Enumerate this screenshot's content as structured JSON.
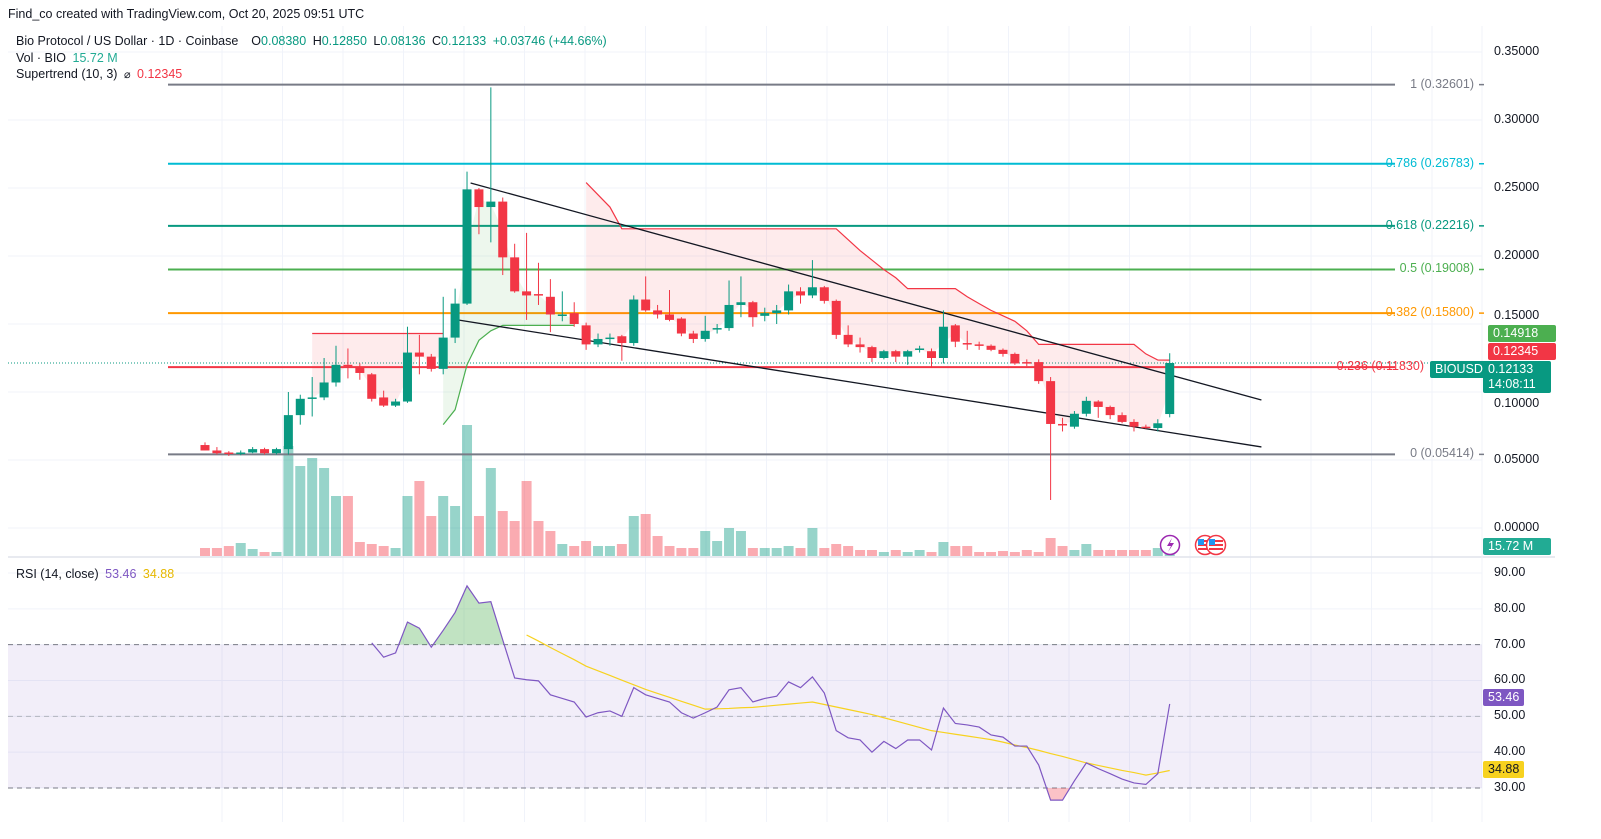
{
  "header": {
    "attribution": "Find_co created with TradingView.com, Oct 20, 2025 09:51 UTC"
  },
  "legend": {
    "symbol": "Bio Protocol / US Dollar · 1D · Coinbase",
    "o_label": "O",
    "o": "0.08380",
    "h_label": "H",
    "h": "0.12850",
    "l_label": "L",
    "l": "0.08136",
    "c_label": "C",
    "c": "0.12133",
    "change": "+0.03746 (+44.66%)",
    "vol_label": "Vol · BIO",
    "vol": "15.72 M",
    "supertrend_label": "Supertrend (10, 3)",
    "supertrend_icon": "eye-off-icon",
    "supertrend_icon_glyph": "⌀",
    "supertrend_value": "0.12345",
    "rsi_label": "RSI (14, close)",
    "rsi_value": "53.46",
    "rsi_ma_value": "34.88"
  },
  "colors": {
    "up": "#089981",
    "down": "#f23645",
    "rsi": "#7e57c2",
    "rsi_ma": "#f7d21f",
    "supertrend_up": "#4caf50",
    "supertrend_down": "#f23645",
    "trendline": "#131722"
  },
  "price_axis": {
    "ticks": [
      {
        "value": 0.35,
        "label": "0.35000"
      },
      {
        "value": 0.3,
        "label": "0.30000"
      },
      {
        "value": 0.25,
        "label": "0.25000"
      },
      {
        "value": 0.2,
        "label": "0.20000"
      },
      {
        "value": 0.15,
        "label": "0.15000"
      },
      {
        "value": 0.1,
        "label": "0.10000"
      },
      {
        "value": 0.05,
        "label": "0.05000"
      },
      {
        "value": 0.0,
        "label": "0.00000"
      }
    ],
    "tags": {
      "green": {
        "value": 0.14918,
        "label": "0.14918",
        "color": "#4caf50"
      },
      "supertrend": {
        "value": 0.12345,
        "label": "0.12345",
        "color": "#f23645"
      },
      "last": {
        "value": 0.12133,
        "label": "0.12133",
        "symbol": "BIOUSD",
        "countdown": "14:08:11",
        "color": "#089981"
      },
      "volume": {
        "label": "15.72 M",
        "color": "#22ab94"
      }
    }
  },
  "rsi_axis": {
    "ticks": [
      {
        "value": 90,
        "label": "90.00"
      },
      {
        "value": 80,
        "label": "80.00"
      },
      {
        "value": 70,
        "label": "70.00"
      },
      {
        "value": 60,
        "label": "60.00"
      },
      {
        "value": 50,
        "label": "50.00"
      },
      {
        "value": 40,
        "label": "40.00"
      },
      {
        "value": 30,
        "label": "30.00"
      }
    ],
    "tags": {
      "rsi": {
        "value": 53.46,
        "label": "53.46",
        "color": "#7e57c2"
      },
      "ma": {
        "value": 34.88,
        "label": "34.88",
        "color": "#f7d21f"
      }
    },
    "bands": [
      70,
      50,
      30
    ]
  },
  "events": [
    {
      "icon": "lightning-icon"
    },
    {
      "icon": "us-flag-icon"
    },
    {
      "icon": "us-flag-icon"
    }
  ],
  "chart_data": {
    "type": "candlestick",
    "title": "Bio Protocol / US Dollar · 1D · Coinbase",
    "ylim": [
      0,
      0.35
    ],
    "grid": true,
    "ohlc": [
      [
        0.061,
        0.063,
        0.057,
        0.057
      ],
      [
        0.057,
        0.0595,
        0.054,
        0.055
      ],
      [
        0.0555,
        0.0565,
        0.053,
        0.0545
      ],
      [
        0.0545,
        0.057,
        0.0535,
        0.0555
      ],
      [
        0.0555,
        0.0595,
        0.055,
        0.058
      ],
      [
        0.058,
        0.059,
        0.054,
        0.055
      ],
      [
        0.055,
        0.059,
        0.054,
        0.058
      ],
      [
        0.058,
        0.1,
        0.054,
        0.083
      ],
      [
        0.083,
        0.098,
        0.076,
        0.095
      ],
      [
        0.095,
        0.111,
        0.082,
        0.096
      ],
      [
        0.096,
        0.125,
        0.094,
        0.107
      ],
      [
        0.107,
        0.134,
        0.104,
        0.12
      ],
      [
        0.12,
        0.132,
        0.11,
        0.119
      ],
      [
        0.118,
        0.121,
        0.109,
        0.114
      ],
      [
        0.113,
        0.114,
        0.093,
        0.095
      ],
      [
        0.096,
        0.101,
        0.089,
        0.09
      ],
      [
        0.09,
        0.095,
        0.089,
        0.093
      ],
      [
        0.093,
        0.148,
        0.092,
        0.129
      ],
      [
        0.129,
        0.142,
        0.113,
        0.126
      ],
      [
        0.126,
        0.128,
        0.115,
        0.117
      ],
      [
        0.117,
        0.17,
        0.113,
        0.14
      ],
      [
        0.14,
        0.176,
        0.136,
        0.165
      ],
      [
        0.165,
        0.262,
        0.164,
        0.249
      ],
      [
        0.249,
        0.25,
        0.216,
        0.236
      ],
      [
        0.236,
        0.324,
        0.21,
        0.24
      ],
      [
        0.24,
        0.243,
        0.186,
        0.199
      ],
      [
        0.199,
        0.209,
        0.173,
        0.174
      ],
      [
        0.174,
        0.217,
        0.153,
        0.171
      ],
      [
        0.172,
        0.195,
        0.164,
        0.171
      ],
      [
        0.17,
        0.183,
        0.144,
        0.157
      ],
      [
        0.156,
        0.174,
        0.152,
        0.157
      ],
      [
        0.158,
        0.166,
        0.148,
        0.15
      ],
      [
        0.149,
        0.151,
        0.131,
        0.135
      ],
      [
        0.135,
        0.143,
        0.133,
        0.139
      ],
      [
        0.139,
        0.143,
        0.134,
        0.14
      ],
      [
        0.141,
        0.142,
        0.123,
        0.136
      ],
      [
        0.136,
        0.171,
        0.134,
        0.168
      ],
      [
        0.168,
        0.185,
        0.159,
        0.16
      ],
      [
        0.16,
        0.164,
        0.154,
        0.157
      ],
      [
        0.157,
        0.175,
        0.152,
        0.153
      ],
      [
        0.154,
        0.155,
        0.141,
        0.143
      ],
      [
        0.143,
        0.145,
        0.136,
        0.139
      ],
      [
        0.139,
        0.156,
        0.137,
        0.145
      ],
      [
        0.146,
        0.15,
        0.143,
        0.147
      ],
      [
        0.147,
        0.182,
        0.145,
        0.164
      ],
      [
        0.164,
        0.185,
        0.155,
        0.166
      ],
      [
        0.166,
        0.167,
        0.148,
        0.155
      ],
      [
        0.156,
        0.162,
        0.152,
        0.158
      ],
      [
        0.158,
        0.164,
        0.15,
        0.16
      ],
      [
        0.16,
        0.179,
        0.157,
        0.174
      ],
      [
        0.174,
        0.177,
        0.165,
        0.171
      ],
      [
        0.171,
        0.197,
        0.169,
        0.177
      ],
      [
        0.177,
        0.178,
        0.165,
        0.167
      ],
      [
        0.167,
        0.168,
        0.139,
        0.142
      ],
      [
        0.142,
        0.149,
        0.133,
        0.135
      ],
      [
        0.135,
        0.14,
        0.129,
        0.133
      ],
      [
        0.133,
        0.134,
        0.122,
        0.125
      ],
      [
        0.125,
        0.131,
        0.124,
        0.13
      ],
      [
        0.13,
        0.131,
        0.122,
        0.126
      ],
      [
        0.126,
        0.131,
        0.12,
        0.13
      ],
      [
        0.131,
        0.134,
        0.129,
        0.132
      ],
      [
        0.13,
        0.132,
        0.118,
        0.125
      ],
      [
        0.125,
        0.16,
        0.121,
        0.148
      ],
      [
        0.149,
        0.15,
        0.133,
        0.137
      ],
      [
        0.136,
        0.145,
        0.131,
        0.135
      ],
      [
        0.135,
        0.137,
        0.131,
        0.134
      ],
      [
        0.134,
        0.135,
        0.13,
        0.131
      ],
      [
        0.131,
        0.132,
        0.126,
        0.128
      ],
      [
        0.128,
        0.129,
        0.12,
        0.121
      ],
      [
        0.122,
        0.124,
        0.119,
        0.121
      ],
      [
        0.122,
        0.124,
        0.106,
        0.108
      ],
      [
        0.108,
        0.111,
        0.0206,
        0.0765
      ],
      [
        0.0765,
        0.081,
        0.071,
        0.0755
      ],
      [
        0.0745,
        0.086,
        0.073,
        0.084
      ],
      [
        0.084,
        0.0965,
        0.082,
        0.0935
      ],
      [
        0.093,
        0.094,
        0.081,
        0.089
      ],
      [
        0.089,
        0.09,
        0.08,
        0.083
      ],
      [
        0.083,
        0.085,
        0.077,
        0.078
      ],
      [
        0.078,
        0.08,
        0.071,
        0.0745
      ],
      [
        0.0745,
        0.076,
        0.073,
        0.074
      ],
      [
        0.0735,
        0.08,
        0.071,
        0.077
      ],
      [
        0.0838,
        0.1285,
        0.08136,
        0.12133
      ]
    ],
    "volume_millions": [
      32,
      32,
      40,
      52,
      28,
      16,
      16,
      440,
      360,
      392,
      352,
      240,
      240,
      56,
      48,
      40,
      32,
      240,
      300,
      160,
      240,
      200,
      524,
      160,
      352,
      180,
      140,
      300,
      140,
      100,
      48,
      40,
      60,
      40,
      40,
      48,
      160,
      168,
      80,
      40,
      32,
      32,
      100,
      60,
      112,
      100,
      32,
      32,
      32,
      40,
      32,
      112,
      32,
      48,
      40,
      24,
      24,
      16,
      24,
      16,
      24,
      16,
      56,
      40,
      40,
      16,
      16,
      20,
      16,
      24,
      16,
      72,
      40,
      24,
      48,
      24,
      24,
      24,
      24,
      24,
      32,
      15.72
    ],
    "supertrend": [
      {
        "direction": "down",
        "start_index": 9,
        "values": [
          0.143,
          0.143,
          0.143,
          0.143,
          0.143,
          0.143,
          0.143,
          0.143,
          0.143,
          0.143,
          0.143,
          0.143
        ]
      },
      {
        "direction": "up",
        "start_index": 20,
        "values": [
          0.076,
          0.087,
          0.12,
          0.138,
          0.145,
          0.149,
          0.149,
          0.149,
          0.149,
          0.149,
          0.149,
          0.149
        ]
      },
      {
        "direction": "down",
        "start_index": 32,
        "values": [
          0.254,
          0.245,
          0.236,
          0.22,
          0.22,
          0.22,
          0.22,
          0.22,
          0.22,
          0.22,
          0.22,
          0.22,
          0.22,
          0.22,
          0.22,
          0.22,
          0.22,
          0.22,
          0.22,
          0.22,
          0.22,
          0.22,
          0.212,
          0.204,
          0.197,
          0.19,
          0.184,
          0.176,
          0.176,
          0.176,
          0.176,
          0.176,
          0.17,
          0.165,
          0.16,
          0.156,
          0.152,
          0.145,
          0.135,
          0.135,
          0.135,
          0.135,
          0.135,
          0.135,
          0.135,
          0.135,
          0.135,
          0.128,
          0.1235,
          0.12345
        ]
      }
    ],
    "trendlines": [
      {
        "name": "upper",
        "points": [
          [
            22.3,
            0.2537
          ],
          [
            88.7,
            0.0941
          ]
        ]
      },
      {
        "name": "lower",
        "points": [
          [
            21.2,
            0.153
          ],
          [
            88.7,
            0.0596
          ]
        ]
      }
    ],
    "fib_levels": [
      {
        "ratio": "1",
        "price": 0.32601,
        "label": "1 (0.32601)",
        "color": "#787b86"
      },
      {
        "ratio": "0.786",
        "price": 0.26783,
        "label": "0.786 (0.26783)",
        "color": "#00bcd4"
      },
      {
        "ratio": "0.618",
        "price": 0.22216,
        "label": "0.618 (0.22216)",
        "color": "#089981"
      },
      {
        "ratio": "0.5",
        "price": 0.19008,
        "label": "0.5 (0.19008)",
        "color": "#4caf50"
      },
      {
        "ratio": "0.382",
        "price": 0.158,
        "label": "0.382 (0.15800)",
        "color": "#ff9800"
      },
      {
        "ratio": "0.236",
        "price": 0.1183,
        "label": "0.236 (0.11830)",
        "color": "#f23645"
      },
      {
        "ratio": "0",
        "price": 0.05414,
        "label": "0 (0.05414)",
        "color": "#787b86"
      }
    ],
    "rsi": {
      "start_index": 14,
      "values": [
        70.5,
        66.5,
        67.7,
        76.3,
        74.6,
        69.3,
        74,
        79,
        86.4,
        81.6,
        82,
        71.3,
        60.7,
        60.2,
        59.9,
        56,
        55,
        54,
        49.8,
        51,
        51.5,
        50,
        58,
        56,
        55,
        54,
        51,
        49.5,
        51,
        52.6,
        57.4,
        58,
        54,
        55,
        55.6,
        59.6,
        58,
        61,
        56.5,
        46,
        44,
        43.4,
        40,
        43,
        41,
        43.4,
        43.4,
        40.6,
        52.3,
        48,
        47.6,
        47,
        44.8,
        44.2,
        41.7,
        41.7,
        36.4,
        26.6,
        26.6,
        32,
        37,
        35.4,
        34,
        32.5,
        31.4,
        31,
        34,
        53.46
      ],
      "ma_start_index": 27,
      "ma_values": [
        72.7,
        71.0,
        69.2,
        67.5,
        65.8,
        64.0,
        62.7,
        61.4,
        60.1,
        58.8,
        57.5,
        56.4,
        55.3,
        54.2,
        53.1,
        52.0,
        52.1,
        52.2,
        52.4,
        52.5,
        52.8,
        53.1,
        53.4,
        53.7,
        54.0,
        53.3,
        52.6,
        51.9,
        51.2,
        50.5,
        49.6,
        48.7,
        47.8,
        46.9,
        46.0,
        45.5,
        45.0,
        44.5,
        44.0,
        43.5,
        42.8,
        42.0,
        41.3,
        40.5,
        39.6,
        38.8,
        37.9,
        37.0,
        36.3,
        35.6,
        34.9,
        34.3,
        33.6,
        34.2,
        34.88
      ],
      "ylim": [
        30,
        90
      ]
    }
  }
}
